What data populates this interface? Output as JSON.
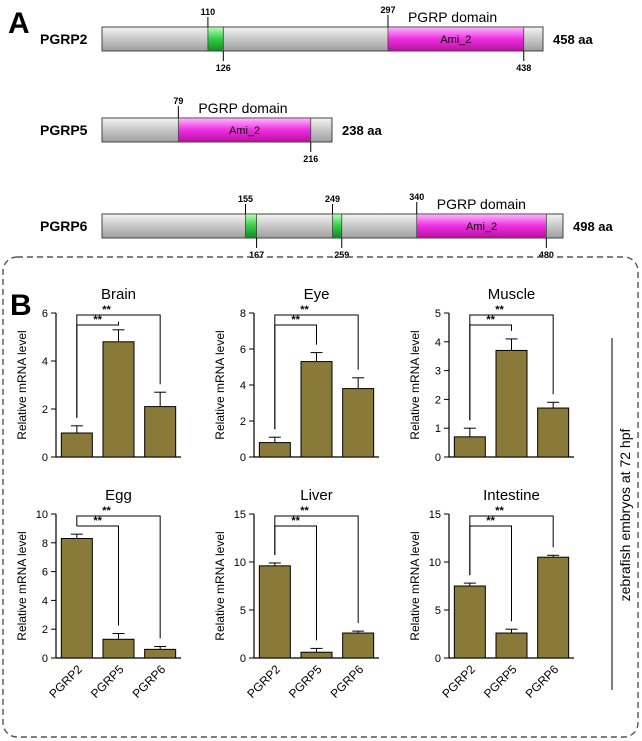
{
  "panel_a": {
    "letter": "A",
    "proteins": [
      {
        "name": "PGRP2",
        "length_label": "458 aa",
        "domain_title": "PGRP domain",
        "length": 458,
        "green_boxes": [
          {
            "start": 110,
            "end": 126,
            "start_label": "110",
            "end_label": "126"
          }
        ],
        "domain": {
          "name": "Ami_2",
          "start": 297,
          "end": 438,
          "start_label": "297",
          "end_label": "438"
        }
      },
      {
        "name": "PGRP5",
        "length_label": "238 aa",
        "domain_title": "PGRP domain",
        "length": 238,
        "green_boxes": [],
        "domain": {
          "name": "Ami_2",
          "start": 79,
          "end": 216,
          "start_label": "79",
          "end_label": "216"
        }
      },
      {
        "name": "PGRP6",
        "length_label": "498 aa",
        "domain_title": "PGRP domain",
        "length": 498,
        "green_boxes": [
          {
            "start": 155,
            "end": 167,
            "start_label": "155",
            "end_label": "167"
          },
          {
            "start": 249,
            "end": 259,
            "start_label": "249",
            "end_label": "259"
          }
        ],
        "domain": {
          "name": "Ami_2",
          "start": 340,
          "end": 480,
          "start_label": "340",
          "end_label": "480"
        }
      }
    ]
  },
  "panel_b": {
    "letter": "B",
    "side_label": "zebrafish embryos at 72 hpf"
  },
  "colors": {
    "bar": "#8a7a3a",
    "domain": "#ee2ee0",
    "motif": "#33cc44",
    "protein_body": "#cccccc"
  },
  "chart_data": [
    {
      "type": "bar",
      "title": "Brain",
      "ylabel": "Relative mRNA level",
      "categories": [
        "PGRP2",
        "PGRP5",
        "PGRP6"
      ],
      "values": [
        1.0,
        4.8,
        2.1
      ],
      "errors": [
        0.3,
        0.5,
        0.6
      ],
      "ylim": [
        0,
        6
      ],
      "yticks": [
        "0",
        "2",
        "4",
        "6"
      ],
      "show_xlabels": false,
      "significance": [
        {
          "pair": [
            0,
            1
          ],
          "label": "**"
        },
        {
          "pair": [
            0,
            2
          ],
          "label": "**"
        }
      ]
    },
    {
      "type": "bar",
      "title": "Eye",
      "ylabel": "Relative mRNA level",
      "categories": [
        "PGRP2",
        "PGRP5",
        "PGRP6"
      ],
      "values": [
        0.8,
        5.3,
        3.8
      ],
      "errors": [
        0.3,
        0.5,
        0.6
      ],
      "ylim": [
        0,
        8
      ],
      "yticks": [
        "0",
        "2",
        "4",
        "6",
        "8"
      ],
      "show_xlabels": false,
      "significance": [
        {
          "pair": [
            0,
            1
          ],
          "label": "**"
        },
        {
          "pair": [
            0,
            2
          ],
          "label": "**"
        }
      ]
    },
    {
      "type": "bar",
      "title": "Muscle",
      "ylabel": "Relative mRNA level",
      "categories": [
        "PGRP2",
        "PGRP5",
        "PGRP6"
      ],
      "values": [
        0.7,
        3.7,
        1.7
      ],
      "errors": [
        0.3,
        0.4,
        0.2
      ],
      "ylim": [
        0,
        5
      ],
      "yticks": [
        "0",
        "1",
        "2",
        "3",
        "4",
        "5"
      ],
      "show_xlabels": false,
      "significance": [
        {
          "pair": [
            0,
            1
          ],
          "label": "**"
        },
        {
          "pair": [
            0,
            2
          ],
          "label": "**"
        }
      ]
    },
    {
      "type": "bar",
      "title": "Egg",
      "ylabel": "Relative mRNA level",
      "categories": [
        "PGRP2",
        "PGRP5",
        "PGRP6"
      ],
      "values": [
        8.3,
        1.3,
        0.6
      ],
      "errors": [
        0.3,
        0.4,
        0.2
      ],
      "ylim": [
        0,
        10
      ],
      "yticks": [
        "0",
        "2",
        "4",
        "6",
        "8",
        "10"
      ],
      "show_xlabels": true,
      "significance": [
        {
          "pair": [
            0,
            1
          ],
          "label": "**"
        },
        {
          "pair": [
            0,
            2
          ],
          "label": "**"
        }
      ]
    },
    {
      "type": "bar",
      "title": "Liver",
      "ylabel": "Relative mRNA level",
      "categories": [
        "PGRP2",
        "PGRP5",
        "PGRP6"
      ],
      "values": [
        9.6,
        0.6,
        2.6
      ],
      "errors": [
        0.3,
        0.4,
        0.2
      ],
      "ylim": [
        0,
        15
      ],
      "yticks": [
        "0",
        "5",
        "10",
        "15"
      ],
      "show_xlabels": true,
      "significance": [
        {
          "pair": [
            0,
            1
          ],
          "label": "**"
        },
        {
          "pair": [
            0,
            2
          ],
          "label": "**"
        }
      ]
    },
    {
      "type": "bar",
      "title": "Intestine",
      "ylabel": "Relative mRNA level",
      "categories": [
        "PGRP2",
        "PGRP5",
        "PGRP6"
      ],
      "values": [
        7.5,
        2.6,
        10.5
      ],
      "errors": [
        0.3,
        0.4,
        0.2
      ],
      "ylim": [
        0,
        15
      ],
      "yticks": [
        "0",
        "5",
        "10",
        "15"
      ],
      "show_xlabels": true,
      "significance": [
        {
          "pair": [
            0,
            1
          ],
          "label": "**"
        },
        {
          "pair": [
            0,
            2
          ],
          "label": "**"
        }
      ]
    }
  ]
}
